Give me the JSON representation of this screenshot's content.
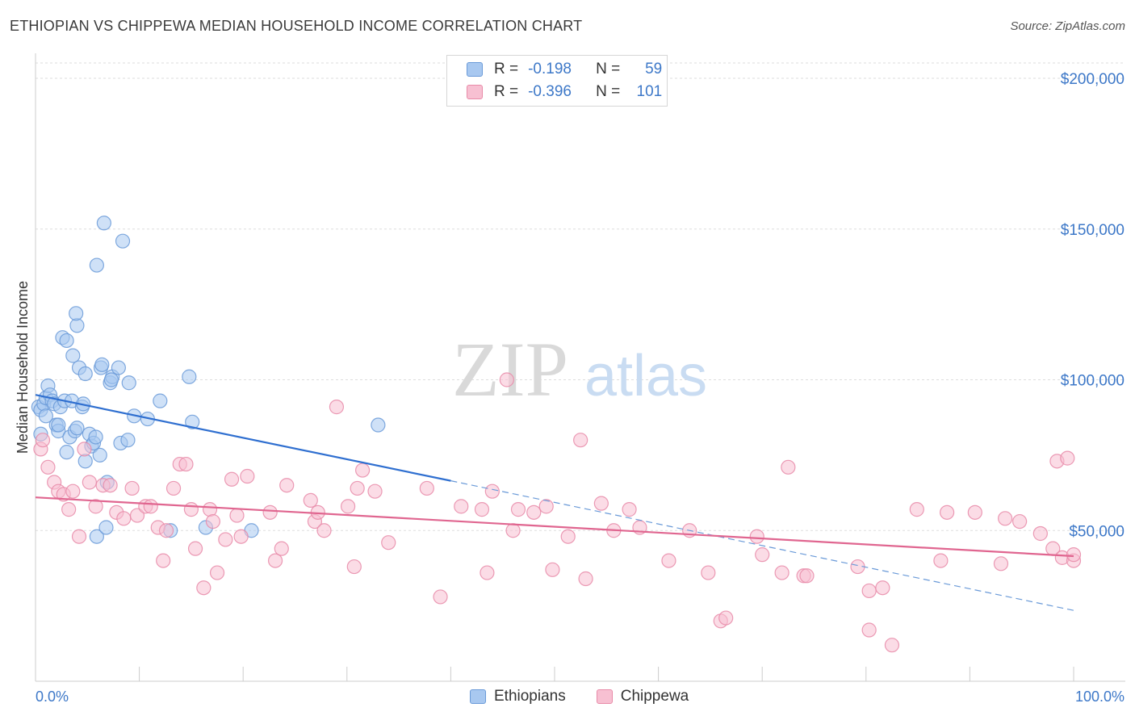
{
  "header": {
    "title": "ETHIOPIAN VS CHIPPEWA MEDIAN HOUSEHOLD INCOME CORRELATION CHART",
    "source": "Source: ZipAtlas.com"
  },
  "watermark": {
    "zip": "ZIP",
    "atlas": "atlas"
  },
  "legend": {
    "rows": [
      {
        "r_label": "R =",
        "r_value": "-0.198",
        "n_label": "N =",
        "n_value": "59",
        "color": "#a8c8f0",
        "border": "#6a9ad8"
      },
      {
        "r_label": "R =",
        "r_value": "-0.396",
        "n_label": "N =",
        "n_value": "101",
        "color": "#f7c0d2",
        "border": "#e88aa8"
      }
    ]
  },
  "bottom_legend": {
    "series1": "Ethiopians",
    "series2": "Chippewa"
  },
  "chart_data": {
    "type": "scatter",
    "title": "ETHIOPIAN VS CHIPPEWA MEDIAN HOUSEHOLD INCOME CORRELATION CHART",
    "xlabel": "",
    "ylabel": "Median Household Income",
    "xlim": [
      0,
      100
    ],
    "ylim": [
      0,
      205000
    ],
    "x_tick_labels": [
      "0.0%",
      "100.0%"
    ],
    "y_ticks": [
      50000,
      100000,
      150000,
      200000
    ],
    "y_tick_labels": [
      "$50,000",
      "$100,000",
      "$150,000",
      "$200,000"
    ],
    "series": [
      {
        "name": "Ethiopians",
        "color": "#6a9ad8",
        "fill": "#a8c8f0",
        "trend": {
          "x": [
            0,
            40
          ],
          "y": [
            95000,
            66500
          ]
        },
        "trend_extension": {
          "x": [
            40,
            100
          ],
          "y": [
            66500,
            23500
          ]
        },
        "points": [
          [
            0.3,
            91000
          ],
          [
            0.5,
            90000
          ],
          [
            0.8,
            92000
          ],
          [
            1.0,
            94000
          ],
          [
            1.2,
            98000
          ],
          [
            1.4,
            95000
          ],
          [
            1.6,
            93000
          ],
          [
            1.8,
            92000
          ],
          [
            2.0,
            85000
          ],
          [
            2.2,
            83000
          ],
          [
            2.4,
            91000
          ],
          [
            2.6,
            114000
          ],
          [
            2.8,
            93000
          ],
          [
            3.0,
            76000
          ],
          [
            3.0,
            113000
          ],
          [
            3.3,
            81000
          ],
          [
            3.5,
            93000
          ],
          [
            3.6,
            108000
          ],
          [
            3.8,
            83000
          ],
          [
            4.0,
            84000
          ],
          [
            4.2,
            104000
          ],
          [
            4.5,
            91000
          ],
          [
            4.6,
            92000
          ],
          [
            4.8,
            102000
          ],
          [
            4.8,
            73000
          ],
          [
            5.2,
            82000
          ],
          [
            5.4,
            78000
          ],
          [
            5.6,
            79000
          ],
          [
            5.8,
            81000
          ],
          [
            5.9,
            138000
          ],
          [
            5.9,
            48000
          ],
          [
            6.2,
            75000
          ],
          [
            6.3,
            104000
          ],
          [
            6.4,
            105000
          ],
          [
            6.6,
            152000
          ],
          [
            6.8,
            51000
          ],
          [
            6.9,
            66000
          ],
          [
            7.2,
            99000
          ],
          [
            7.4,
            101000
          ],
          [
            8.0,
            104000
          ],
          [
            8.2,
            79000
          ],
          [
            8.4,
            146000
          ],
          [
            8.9,
            80000
          ],
          [
            9.0,
            99000
          ],
          [
            9.5,
            88000
          ],
          [
            10.8,
            87000
          ],
          [
            12.0,
            93000
          ],
          [
            13.0,
            50000
          ],
          [
            14.8,
            101000
          ],
          [
            15.1,
            86000
          ],
          [
            16.4,
            51000
          ],
          [
            20.8,
            50000
          ],
          [
            33.0,
            85000
          ],
          [
            4.0,
            118000
          ],
          [
            2.2,
            85000
          ],
          [
            1.0,
            88000
          ],
          [
            0.5,
            82000
          ],
          [
            3.9,
            122000
          ],
          [
            7.3,
            100000
          ]
        ]
      },
      {
        "name": "Chippewa",
        "color": "#e88aa8",
        "fill": "#f7c0d2",
        "trend": {
          "x": [
            0,
            100
          ],
          "y": [
            61000,
            41500
          ]
        },
        "points": [
          [
            0.5,
            77000
          ],
          [
            0.7,
            80000
          ],
          [
            1.2,
            71000
          ],
          [
            1.8,
            66000
          ],
          [
            2.2,
            63000
          ],
          [
            2.7,
            62000
          ],
          [
            3.2,
            57000
          ],
          [
            3.6,
            63000
          ],
          [
            4.2,
            48000
          ],
          [
            4.7,
            77000
          ],
          [
            5.2,
            66000
          ],
          [
            5.8,
            58000
          ],
          [
            6.5,
            65000
          ],
          [
            7.2,
            65000
          ],
          [
            7.8,
            56000
          ],
          [
            8.5,
            54000
          ],
          [
            9.3,
            64000
          ],
          [
            9.8,
            55000
          ],
          [
            10.6,
            58000
          ],
          [
            11.1,
            58000
          ],
          [
            11.8,
            51000
          ],
          [
            12.3,
            40000
          ],
          [
            12.6,
            50000
          ],
          [
            13.3,
            64000
          ],
          [
            13.9,
            72000
          ],
          [
            14.5,
            72000
          ],
          [
            15.0,
            57000
          ],
          [
            15.4,
            44000
          ],
          [
            16.2,
            31000
          ],
          [
            16.8,
            57000
          ],
          [
            17.1,
            53000
          ],
          [
            17.5,
            36000
          ],
          [
            18.3,
            47000
          ],
          [
            18.9,
            67000
          ],
          [
            19.4,
            55000
          ],
          [
            19.8,
            48000
          ],
          [
            20.4,
            68000
          ],
          [
            22.6,
            56000
          ],
          [
            23.1,
            40000
          ],
          [
            23.7,
            44000
          ],
          [
            24.2,
            65000
          ],
          [
            26.5,
            60000
          ],
          [
            26.9,
            53000
          ],
          [
            27.2,
            56000
          ],
          [
            27.8,
            50000
          ],
          [
            29.0,
            91000
          ],
          [
            30.1,
            58000
          ],
          [
            30.7,
            38000
          ],
          [
            31.0,
            64000
          ],
          [
            31.5,
            70000
          ],
          [
            32.7,
            63000
          ],
          [
            34.0,
            46000
          ],
          [
            37.7,
            64000
          ],
          [
            39.0,
            28000
          ],
          [
            41.0,
            58000
          ],
          [
            43.0,
            57000
          ],
          [
            43.5,
            36000
          ],
          [
            44.0,
            63000
          ],
          [
            45.4,
            100000
          ],
          [
            46.0,
            50000
          ],
          [
            46.5,
            57000
          ],
          [
            48.0,
            56000
          ],
          [
            49.2,
            58000
          ],
          [
            49.8,
            37000
          ],
          [
            51.3,
            48000
          ],
          [
            52.5,
            80000
          ],
          [
            53.0,
            34000
          ],
          [
            54.5,
            59000
          ],
          [
            55.7,
            50000
          ],
          [
            57.2,
            57000
          ],
          [
            58.2,
            51000
          ],
          [
            61.0,
            40000
          ],
          [
            63.0,
            50000
          ],
          [
            64.8,
            36000
          ],
          [
            66.0,
            20000
          ],
          [
            66.5,
            21000
          ],
          [
            69.5,
            48000
          ],
          [
            70.0,
            42000
          ],
          [
            71.9,
            36000
          ],
          [
            72.5,
            71000
          ],
          [
            74.0,
            35000
          ],
          [
            74.3,
            35000
          ],
          [
            79.2,
            38000
          ],
          [
            80.3,
            30000
          ],
          [
            80.3,
            17000
          ],
          [
            81.6,
            31000
          ],
          [
            82.5,
            12000
          ],
          [
            84.9,
            57000
          ],
          [
            87.2,
            40000
          ],
          [
            87.8,
            56000
          ],
          [
            90.5,
            56000
          ],
          [
            93.0,
            39000
          ],
          [
            93.4,
            54000
          ],
          [
            94.8,
            53000
          ],
          [
            96.8,
            49000
          ],
          [
            98.0,
            44000
          ],
          [
            98.4,
            73000
          ],
          [
            98.9,
            41000
          ],
          [
            99.4,
            74000
          ],
          [
            100.0,
            40000
          ],
          [
            100.0,
            42000
          ]
        ]
      }
    ]
  }
}
